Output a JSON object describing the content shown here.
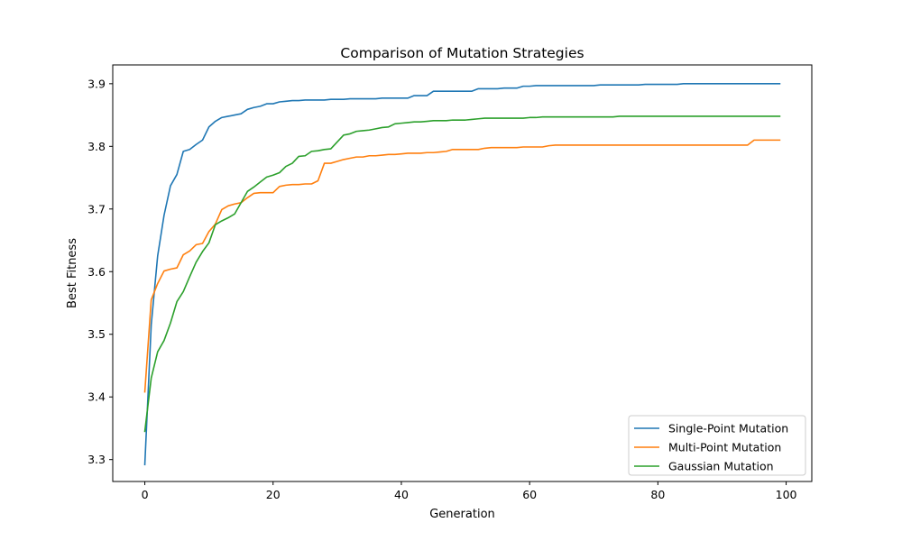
{
  "chart_data": {
    "type": "line",
    "title": "Comparison of Mutation Strategies",
    "xlabel": "Generation",
    "ylabel": "Best Fitness",
    "xlim": [
      -5,
      104
    ],
    "ylim": [
      3.265,
      3.93
    ],
    "xticks": [
      0,
      20,
      40,
      60,
      80,
      100
    ],
    "yticks": [
      3.3,
      3.4,
      3.5,
      3.6,
      3.7,
      3.8,
      3.9
    ],
    "xtick_labels": [
      "0",
      "20",
      "40",
      "60",
      "80",
      "100"
    ],
    "ytick_labels": [
      "3.3",
      "3.4",
      "3.5",
      "3.6",
      "3.7",
      "3.8",
      "3.9"
    ],
    "grid": false,
    "legend_position": "lower-right",
    "series": [
      {
        "name": "Single-Point Mutation",
        "color": "#1f77b4",
        "x": [
          0,
          1,
          2,
          3,
          4,
          5,
          6,
          7,
          8,
          9,
          10,
          11,
          12,
          13,
          14,
          15,
          16,
          17,
          18,
          19,
          20,
          21,
          22,
          23,
          24,
          25,
          26,
          27,
          28,
          29,
          30,
          31,
          32,
          33,
          34,
          35,
          36,
          37,
          38,
          39,
          40,
          41,
          42,
          43,
          44,
          45,
          46,
          47,
          48,
          49,
          50,
          51,
          52,
          53,
          54,
          55,
          56,
          57,
          58,
          59,
          60,
          61,
          62,
          63,
          64,
          65,
          66,
          67,
          68,
          69,
          70,
          71,
          72,
          73,
          74,
          75,
          76,
          77,
          78,
          79,
          80,
          81,
          82,
          83,
          84,
          85,
          86,
          87,
          88,
          89,
          90,
          91,
          92,
          93,
          94,
          95,
          96,
          97,
          98,
          99
        ],
        "y": [
          3.292,
          3.515,
          3.625,
          3.69,
          3.737,
          3.755,
          3.792,
          3.795,
          3.803,
          3.81,
          3.831,
          3.84,
          3.846,
          3.848,
          3.85,
          3.852,
          3.859,
          3.862,
          3.864,
          3.868,
          3.868,
          3.871,
          3.872,
          3.873,
          3.873,
          3.874,
          3.874,
          3.874,
          3.874,
          3.875,
          3.875,
          3.875,
          3.876,
          3.876,
          3.876,
          3.876,
          3.876,
          3.877,
          3.877,
          3.877,
          3.877,
          3.877,
          3.881,
          3.881,
          3.881,
          3.888,
          3.888,
          3.888,
          3.888,
          3.888,
          3.888,
          3.888,
          3.892,
          3.892,
          3.892,
          3.892,
          3.893,
          3.893,
          3.893,
          3.896,
          3.896,
          3.897,
          3.897,
          3.897,
          3.897,
          3.897,
          3.897,
          3.897,
          3.897,
          3.897,
          3.897,
          3.898,
          3.898,
          3.898,
          3.898,
          3.898,
          3.898,
          3.898,
          3.899,
          3.899,
          3.899,
          3.899,
          3.899,
          3.899,
          3.9,
          3.9,
          3.9,
          3.9,
          3.9,
          3.9,
          3.9,
          3.9,
          3.9,
          3.9,
          3.9,
          3.9,
          3.9,
          3.9,
          3.9,
          3.9
        ]
      },
      {
        "name": "Multi-Point Mutation",
        "color": "#ff7f0e",
        "x": [
          0,
          1,
          2,
          3,
          4,
          5,
          6,
          7,
          8,
          9,
          10,
          11,
          12,
          13,
          14,
          15,
          16,
          17,
          18,
          19,
          20,
          21,
          22,
          23,
          24,
          25,
          26,
          27,
          28,
          29,
          30,
          31,
          32,
          33,
          34,
          35,
          36,
          37,
          38,
          39,
          40,
          41,
          42,
          43,
          44,
          45,
          46,
          47,
          48,
          49,
          50,
          51,
          52,
          53,
          54,
          55,
          56,
          57,
          58,
          59,
          60,
          61,
          62,
          63,
          64,
          65,
          66,
          67,
          68,
          69,
          70,
          71,
          72,
          73,
          74,
          75,
          76,
          77,
          78,
          79,
          80,
          81,
          82,
          83,
          84,
          85,
          86,
          87,
          88,
          89,
          90,
          91,
          92,
          93,
          94,
          95,
          96,
          97,
          98,
          99
        ],
        "y": [
          3.408,
          3.555,
          3.581,
          3.601,
          3.604,
          3.606,
          3.627,
          3.633,
          3.643,
          3.645,
          3.664,
          3.676,
          3.699,
          3.705,
          3.708,
          3.71,
          3.718,
          3.725,
          3.726,
          3.726,
          3.726,
          3.736,
          3.738,
          3.739,
          3.739,
          3.74,
          3.74,
          3.745,
          3.773,
          3.773,
          3.776,
          3.779,
          3.781,
          3.783,
          3.783,
          3.785,
          3.785,
          3.786,
          3.787,
          3.787,
          3.788,
          3.789,
          3.789,
          3.789,
          3.79,
          3.79,
          3.791,
          3.792,
          3.795,
          3.795,
          3.795,
          3.795,
          3.795,
          3.797,
          3.798,
          3.798,
          3.798,
          3.798,
          3.798,
          3.799,
          3.799,
          3.799,
          3.799,
          3.801,
          3.802,
          3.802,
          3.802,
          3.802,
          3.802,
          3.802,
          3.802,
          3.802,
          3.802,
          3.802,
          3.802,
          3.802,
          3.802,
          3.802,
          3.802,
          3.802,
          3.802,
          3.802,
          3.802,
          3.802,
          3.802,
          3.802,
          3.802,
          3.802,
          3.802,
          3.802,
          3.802,
          3.802,
          3.802,
          3.802,
          3.802,
          3.81,
          3.81,
          3.81,
          3.81,
          3.81
        ]
      },
      {
        "name": "Gaussian Mutation",
        "color": "#2ca02c",
        "x": [
          0,
          1,
          2,
          3,
          4,
          5,
          6,
          7,
          8,
          9,
          10,
          11,
          12,
          13,
          14,
          15,
          16,
          17,
          18,
          19,
          20,
          21,
          22,
          23,
          24,
          25,
          26,
          27,
          28,
          29,
          30,
          31,
          32,
          33,
          34,
          35,
          36,
          37,
          38,
          39,
          40,
          41,
          42,
          43,
          44,
          45,
          46,
          47,
          48,
          49,
          50,
          51,
          52,
          53,
          54,
          55,
          56,
          57,
          58,
          59,
          60,
          61,
          62,
          63,
          64,
          65,
          66,
          67,
          68,
          69,
          70,
          71,
          72,
          73,
          74,
          75,
          76,
          77,
          78,
          79,
          80,
          81,
          82,
          83,
          84,
          85,
          86,
          87,
          88,
          89,
          90,
          91,
          92,
          93,
          94,
          95,
          96,
          97,
          98,
          99
        ],
        "y": [
          3.345,
          3.43,
          3.472,
          3.49,
          3.518,
          3.552,
          3.568,
          3.592,
          3.615,
          3.632,
          3.646,
          3.675,
          3.681,
          3.686,
          3.692,
          3.71,
          3.728,
          3.735,
          3.743,
          3.751,
          3.754,
          3.758,
          3.768,
          3.773,
          3.784,
          3.785,
          3.792,
          3.793,
          3.795,
          3.796,
          3.807,
          3.818,
          3.82,
          3.824,
          3.825,
          3.826,
          3.828,
          3.83,
          3.831,
          3.836,
          3.837,
          3.838,
          3.839,
          3.839,
          3.84,
          3.841,
          3.841,
          3.841,
          3.842,
          3.842,
          3.842,
          3.843,
          3.844,
          3.845,
          3.845,
          3.845,
          3.845,
          3.845,
          3.845,
          3.845,
          3.846,
          3.846,
          3.847,
          3.847,
          3.847,
          3.847,
          3.847,
          3.847,
          3.847,
          3.847,
          3.847,
          3.847,
          3.847,
          3.847,
          3.848,
          3.848,
          3.848,
          3.848,
          3.848,
          3.848,
          3.848,
          3.848,
          3.848,
          3.848,
          3.848,
          3.848,
          3.848,
          3.848,
          3.848,
          3.848,
          3.848,
          3.848,
          3.848,
          3.848,
          3.848,
          3.848,
          3.848,
          3.848,
          3.848,
          3.848
        ]
      }
    ]
  }
}
